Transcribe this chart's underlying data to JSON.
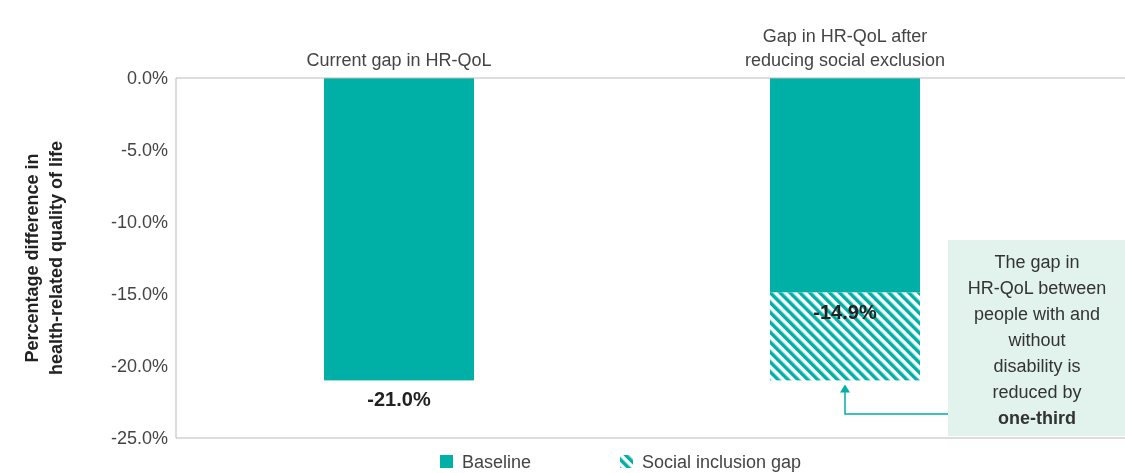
{
  "chart_data": {
    "type": "bar",
    "stacked": true,
    "categories": [
      "Current gap in HR-QoL",
      "Gap in HR-QoL after reducing social exclusion"
    ],
    "ylabel": "Percentage difference in health-related quality of life",
    "ylim": [
      -25,
      0
    ],
    "yticks": [
      {
        "value": 0,
        "label": "0.0%"
      },
      {
        "value": -5,
        "label": "-5.0%"
      },
      {
        "value": -10,
        "label": "-10.0%"
      },
      {
        "value": -15,
        "label": "-15.0%"
      },
      {
        "value": -20,
        "label": "-20.0%"
      },
      {
        "value": -25,
        "label": "-25.0%"
      }
    ],
    "series": [
      {
        "name": "Baseline",
        "color": "#00afa5",
        "values": [
          -21.0,
          -14.9
        ],
        "value_labels": [
          "-21.0%",
          "-14.9%"
        ]
      },
      {
        "name": "Social inclusion gap",
        "color": "#00afa5",
        "values": [
          null,
          -6.1
        ]
      }
    ],
    "annotations": [
      {
        "text": "The gap in HR-QoL between people with and without disability is reduced by one-third",
        "x": "Gap in HR-QoL after reducing social exclusion",
        "y": -21.0
      }
    ],
    "grid": false,
    "legend": "bottom"
  }
}
